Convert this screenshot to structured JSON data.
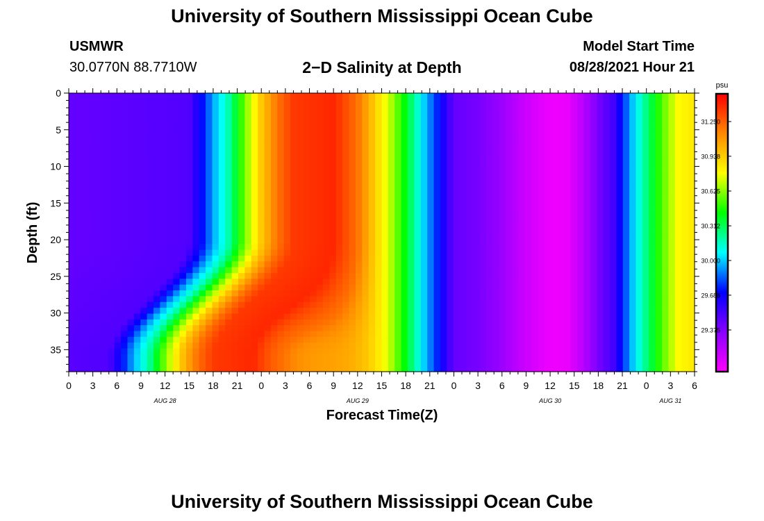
{
  "header": {
    "title": "University of Southern Mississippi Ocean Cube",
    "station": "USMWR",
    "coords": "30.0770N  88.7710W",
    "plot_title": "2−D Salinity at Depth",
    "model_start_label": "Model Start Time",
    "model_start_value": "08/28/2021 Hour 21"
  },
  "footer": {
    "title": "University of Southern Mississippi Ocean Cube"
  },
  "colors": {
    "ramp": [
      "#ff00ff",
      "#8800ff",
      "#0000ff",
      "#00ffff",
      "#00ff00",
      "#ffff00",
      "#ff8800",
      "#ff0000"
    ]
  },
  "chart_data": {
    "type": "heatmap",
    "xlabel": "Forecast Time(Z)",
    "ylabel": "Depth (ft)",
    "y_range": [
      0,
      38
    ],
    "y_ticks": [
      0,
      5,
      10,
      15,
      20,
      25,
      30,
      35
    ],
    "x_range_hours": [
      0,
      78
    ],
    "x_tick_labels": [
      "0",
      "3",
      "6",
      "9",
      "12",
      "15",
      "18",
      "21",
      "0",
      "3",
      "6",
      "9",
      "12",
      "15",
      "18",
      "21",
      "0",
      "3",
      "6",
      "9",
      "12",
      "15",
      "18",
      "21",
      "0",
      "3",
      "6"
    ],
    "date_labels": [
      {
        "label": "AUG 28",
        "hour": 12
      },
      {
        "label": "AUG 29",
        "hour": 36
      },
      {
        "label": "AUG 30",
        "hour": 60
      },
      {
        "label": "AUG 31",
        "hour": 75
      }
    ],
    "colorbar": {
      "unit": "psu",
      "min": 29.0,
      "max": 31.5,
      "tick_labels": [
        "31.250",
        "30.938",
        "30.625",
        "30.312",
        "30.000",
        "29.688",
        "29.375"
      ]
    },
    "surface_salinity_by_hour": [
      {
        "hour": 0,
        "psu": 29.45
      },
      {
        "hour": 15,
        "psu": 29.5
      },
      {
        "hour": 17,
        "psu": 29.78
      },
      {
        "hour": 18,
        "psu": 29.95
      },
      {
        "hour": 20,
        "psu": 30.2
      },
      {
        "hour": 22,
        "psu": 30.6
      },
      {
        "hour": 24,
        "psu": 30.95
      },
      {
        "hour": 26,
        "psu": 31.2
      },
      {
        "hour": 28,
        "psu": 31.35
      },
      {
        "hour": 33,
        "psu": 31.4
      },
      {
        "hour": 36,
        "psu": 31.2
      },
      {
        "hour": 38,
        "psu": 30.95
      },
      {
        "hour": 40,
        "psu": 30.7
      },
      {
        "hour": 42,
        "psu": 30.4
      },
      {
        "hour": 44,
        "psu": 30.05
      },
      {
        "hour": 46,
        "psu": 29.75
      },
      {
        "hour": 48,
        "psu": 29.45
      },
      {
        "hour": 51,
        "psu": 29.4
      },
      {
        "hour": 54,
        "psu": 29.3
      },
      {
        "hour": 57,
        "psu": 29.15
      },
      {
        "hour": 60,
        "psu": 29.05
      },
      {
        "hour": 62,
        "psu": 29.05
      },
      {
        "hour": 64,
        "psu": 29.2
      },
      {
        "hour": 66,
        "psu": 29.4
      },
      {
        "hour": 68,
        "psu": 29.55
      },
      {
        "hour": 70,
        "psu": 29.95
      },
      {
        "hour": 72,
        "psu": 30.25
      },
      {
        "hour": 74,
        "psu": 30.55
      },
      {
        "hour": 76,
        "psu": 30.8
      },
      {
        "hour": 78,
        "psu": 30.85
      }
    ]
  }
}
